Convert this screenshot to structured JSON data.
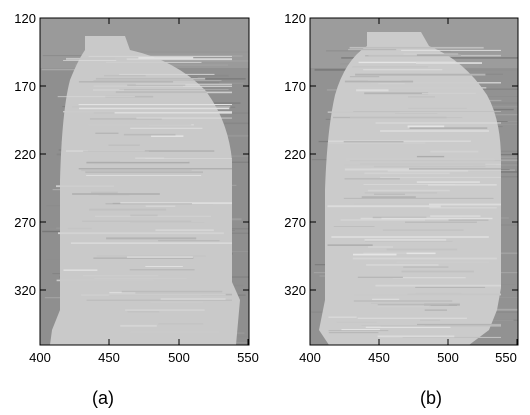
{
  "panels": [
    {
      "id": "a",
      "caption": "(a)",
      "y_ticks": [
        "120",
        "170",
        "220",
        "270",
        "320"
      ],
      "x_ticks": [
        "400",
        "450",
        "500",
        "550"
      ],
      "colors": {
        "background": "#8c8c8c",
        "shape": "#c8c8c8"
      }
    },
    {
      "id": "b",
      "caption": "(b)",
      "y_ticks": [
        "120",
        "170",
        "220",
        "270",
        "320"
      ],
      "x_ticks": [
        "400",
        "450",
        "500",
        "550"
      ],
      "colors": {
        "background": "#909090",
        "shape": "#cacaca"
      }
    }
  ]
}
